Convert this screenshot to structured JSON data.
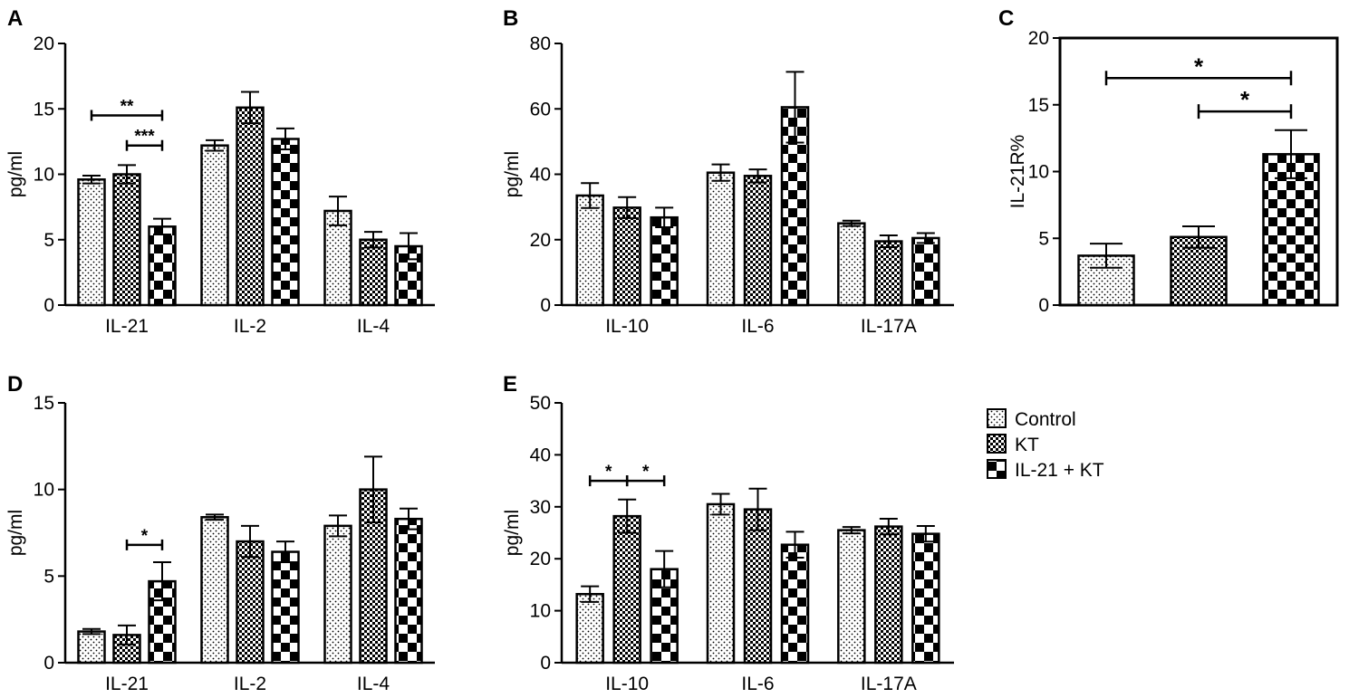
{
  "figure": {
    "legend": {
      "entries": [
        {
          "label": "Control",
          "pattern": "dots"
        },
        {
          "label": "KT",
          "pattern": "fine-check"
        },
        {
          "label": "IL-21 + KT",
          "pattern": "coarse-check"
        }
      ]
    }
  },
  "chart_data": [
    {
      "panel": "A",
      "type": "bar",
      "ylabel": "pg/ml",
      "ylim": [
        0,
        20
      ],
      "yticks": [
        "0",
        "5",
        "10",
        "15",
        "20"
      ],
      "categories": [
        "IL-21",
        "IL-2",
        "IL-4"
      ],
      "series": [
        {
          "name": "Control",
          "values": [
            9.6,
            12.2,
            7.2
          ],
          "errors": [
            0.3,
            0.4,
            1.1
          ]
        },
        {
          "name": "KT",
          "values": [
            10.0,
            15.1,
            5.0
          ],
          "errors": [
            0.7,
            1.2,
            0.6
          ]
        },
        {
          "name": "IL-21 + KT",
          "values": [
            6.0,
            12.7,
            4.5
          ],
          "errors": [
            0.6,
            0.8,
            1.0
          ]
        }
      ],
      "significance": [
        {
          "label": "**",
          "from": [
            0,
            0
          ],
          "to": [
            0,
            2
          ],
          "y": 14.5
        },
        {
          "label": "***",
          "from": [
            0,
            1
          ],
          "to": [
            0,
            2
          ],
          "y": 12.2
        }
      ]
    },
    {
      "panel": "B",
      "type": "bar",
      "ylabel": "pg/ml",
      "ylim": [
        0,
        80
      ],
      "yticks": [
        "0",
        "20",
        "40",
        "60",
        "80"
      ],
      "categories": [
        "IL-10",
        "IL-6",
        "IL-17A"
      ],
      "series": [
        {
          "name": "Control",
          "values": [
            33.5,
            40.5,
            25.0
          ],
          "errors": [
            3.8,
            2.5,
            0.8
          ]
        },
        {
          "name": "KT",
          "values": [
            29.8,
            39.5,
            19.5
          ],
          "errors": [
            3.2,
            2.0,
            1.8
          ]
        },
        {
          "name": "IL-21 + KT",
          "values": [
            26.8,
            60.5,
            20.5
          ],
          "errors": [
            3.0,
            10.8,
            1.5
          ]
        }
      ],
      "significance": []
    },
    {
      "panel": "C",
      "type": "bar",
      "ylabel": "IL-21R%",
      "ylim": [
        0,
        20
      ],
      "yticks": [
        "0",
        "5",
        "10",
        "15",
        "20"
      ],
      "categories": [
        "Control",
        "KT",
        "IL-21 + KT"
      ],
      "values": [
        3.7,
        5.1,
        11.3
      ],
      "errors": [
        0.9,
        0.8,
        1.8
      ],
      "significance": [
        {
          "label": "*",
          "from": 0,
          "to": 2,
          "y": 17.0
        },
        {
          "label": "*",
          "from": 1,
          "to": 2,
          "y": 14.5
        }
      ]
    },
    {
      "panel": "D",
      "type": "bar",
      "ylabel": "pg/ml",
      "ylim": [
        0,
        15
      ],
      "yticks": [
        "0",
        "5",
        "10",
        "15"
      ],
      "categories": [
        "IL-21",
        "IL-2",
        "IL-4"
      ],
      "series": [
        {
          "name": "Control",
          "values": [
            1.8,
            8.4,
            7.9
          ],
          "errors": [
            0.15,
            0.15,
            0.6
          ]
        },
        {
          "name": "KT",
          "values": [
            1.6,
            7.0,
            10.0
          ],
          "errors": [
            0.55,
            0.9,
            1.9
          ]
        },
        {
          "name": "IL-21 + KT",
          "values": [
            4.7,
            6.4,
            8.3
          ],
          "errors": [
            1.1,
            0.6,
            0.6
          ]
        }
      ],
      "significance": [
        {
          "label": "*",
          "from": [
            0,
            1
          ],
          "to": [
            0,
            2
          ],
          "y": 6.8
        }
      ]
    },
    {
      "panel": "E",
      "type": "bar",
      "ylabel": "pg/ml",
      "ylim": [
        0,
        50
      ],
      "yticks": [
        "0",
        "10",
        "20",
        "30",
        "40",
        "50"
      ],
      "categories": [
        "IL-10",
        "IL-6",
        "IL-17A"
      ],
      "series": [
        {
          "name": "Control",
          "values": [
            13.2,
            30.5,
            25.5
          ],
          "errors": [
            1.5,
            2.0,
            0.6
          ]
        },
        {
          "name": "KT",
          "values": [
            28.2,
            29.5,
            26.2
          ],
          "errors": [
            3.2,
            4.0,
            1.5
          ]
        },
        {
          "name": "IL-21 + KT",
          "values": [
            18.0,
            22.7,
            24.8
          ],
          "errors": [
            3.5,
            2.5,
            1.5
          ]
        }
      ],
      "significance": [
        {
          "label": "*",
          "from": [
            0,
            0
          ],
          "to": [
            0,
            1
          ],
          "y": 35.0
        },
        {
          "label": "*",
          "from": [
            0,
            1
          ],
          "to": [
            0,
            2
          ],
          "y": 35.0
        }
      ]
    }
  ]
}
